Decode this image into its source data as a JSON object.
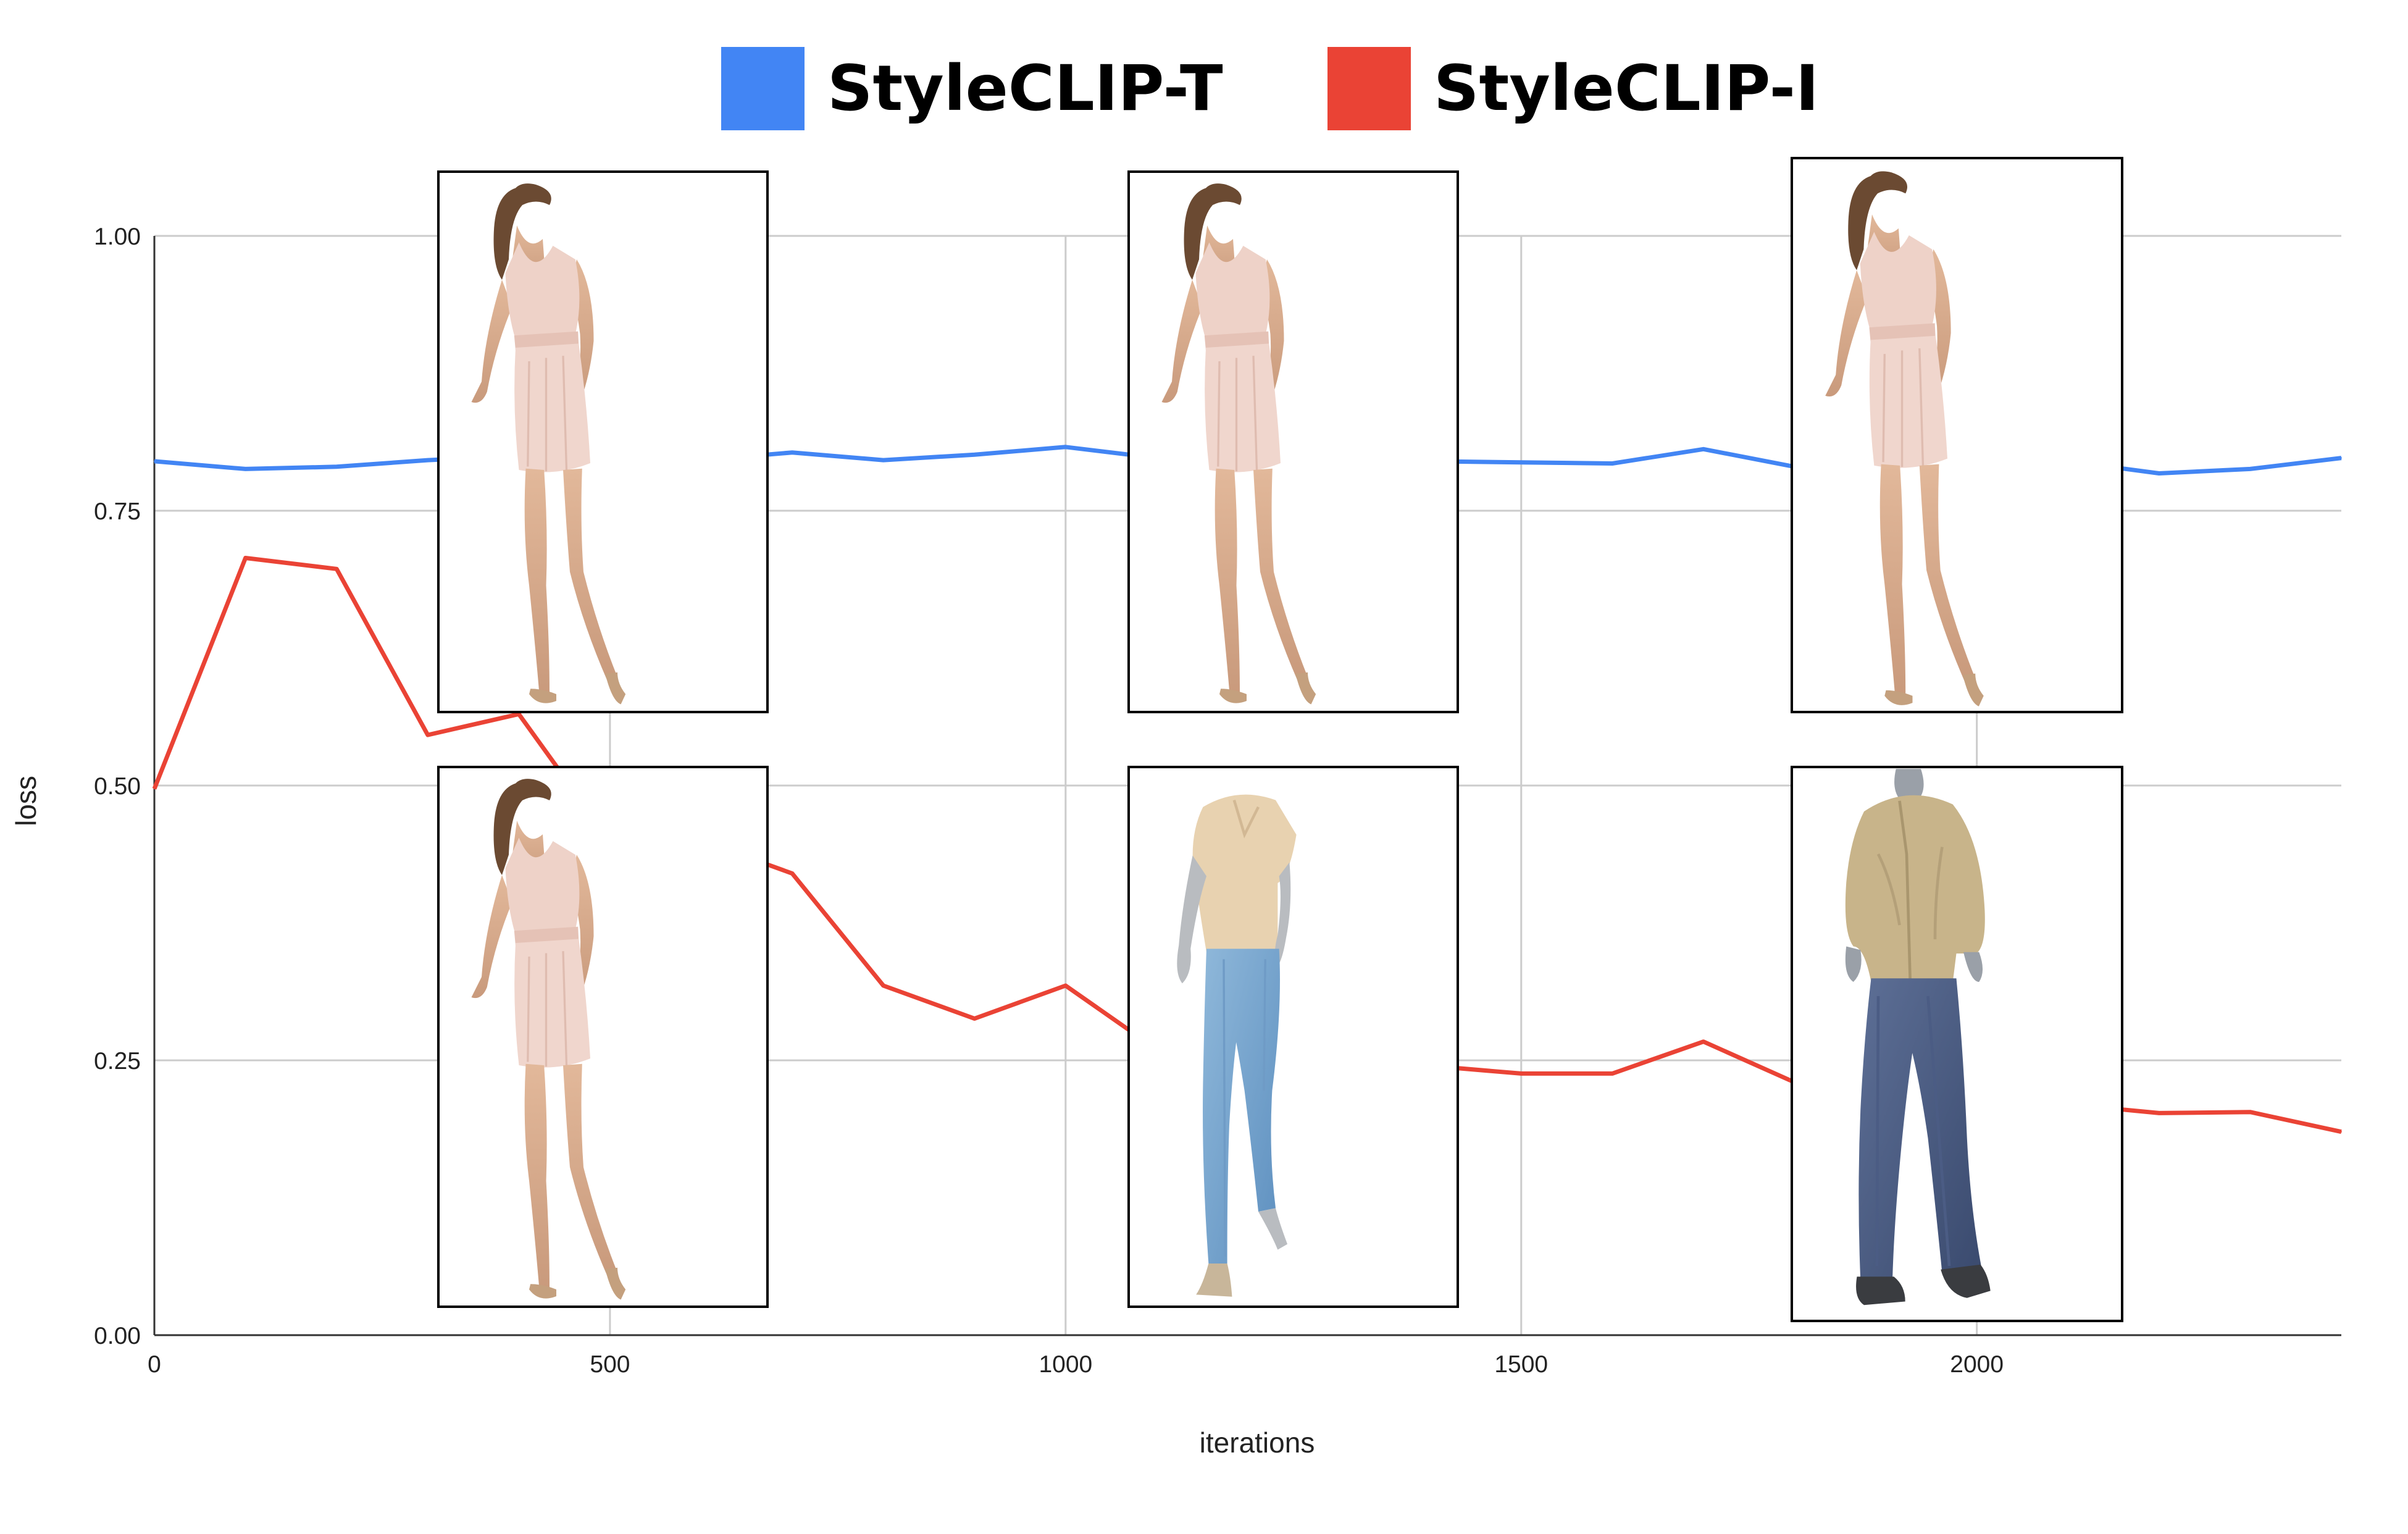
{
  "chart_data": {
    "type": "line",
    "title": "",
    "xlabel": "iterations",
    "ylabel": "loss",
    "xlim": [
      0,
      2400
    ],
    "ylim": [
      0,
      1
    ],
    "xticks": [
      0,
      500,
      1000,
      1500,
      2000
    ],
    "xtick_labels": [
      "0",
      "500",
      "1000",
      "1500",
      "2000"
    ],
    "yticks": [
      0,
      0.25,
      0.5,
      0.75,
      1.0
    ],
    "ytick_labels": [
      "0.00",
      "0.25",
      "0.50",
      "0.75",
      "1.00"
    ],
    "grid": true,
    "legend_position": "top-center",
    "x": [
      0,
      100,
      200,
      300,
      400,
      500,
      600,
      700,
      800,
      900,
      1000,
      1100,
      1200,
      1300,
      1400,
      1500,
      1600,
      1700,
      1800,
      1900,
      2000,
      2100,
      2200,
      2300,
      2400
    ],
    "series": [
      {
        "name": "StyleCLIP-T",
        "color": "#4285f4",
        "values": [
          0.795,
          0.788,
          0.79,
          0.796,
          0.8,
          0.8,
          0.796,
          0.803,
          0.796,
          0.801,
          0.808,
          0.798,
          0.796,
          0.794,
          0.795,
          0.794,
          0.793,
          0.806,
          0.79,
          0.793,
          0.795,
          0.795,
          0.784,
          0.788,
          0.798
        ]
      },
      {
        "name": "StyleCLIP-I",
        "color": "#ea4335",
        "values": [
          0.497,
          0.707,
          0.697,
          0.546,
          0.565,
          0.45,
          0.45,
          0.42,
          0.318,
          0.288,
          0.318,
          0.26,
          0.26,
          0.255,
          0.245,
          0.238,
          0.238,
          0.267,
          0.23,
          0.225,
          0.215,
          0.21,
          0.202,
          0.203,
          0.185
        ]
      }
    ],
    "annotations": [
      {
        "type": "image",
        "subject": "person in pink sleeveless mini dress",
        "row": "top",
        "column": 1,
        "icon": "photo-icon"
      },
      {
        "type": "image",
        "subject": "person in pink sleeveless mini dress",
        "row": "top",
        "column": 2,
        "icon": "photo-icon"
      },
      {
        "type": "image",
        "subject": "person in pink sleeveless mini dress",
        "row": "top",
        "column": 3,
        "icon": "photo-icon"
      },
      {
        "type": "image",
        "subject": "person in pink sleeveless mini dress",
        "row": "bottom",
        "column": 1,
        "icon": "photo-icon"
      },
      {
        "type": "image",
        "subject": "person in beige top and light blue jeans",
        "row": "bottom",
        "column": 2,
        "icon": "photo-icon"
      },
      {
        "type": "image",
        "subject": "person in khaki jacket and dark wide jeans",
        "row": "bottom",
        "column": 3,
        "icon": "photo-icon"
      }
    ]
  }
}
